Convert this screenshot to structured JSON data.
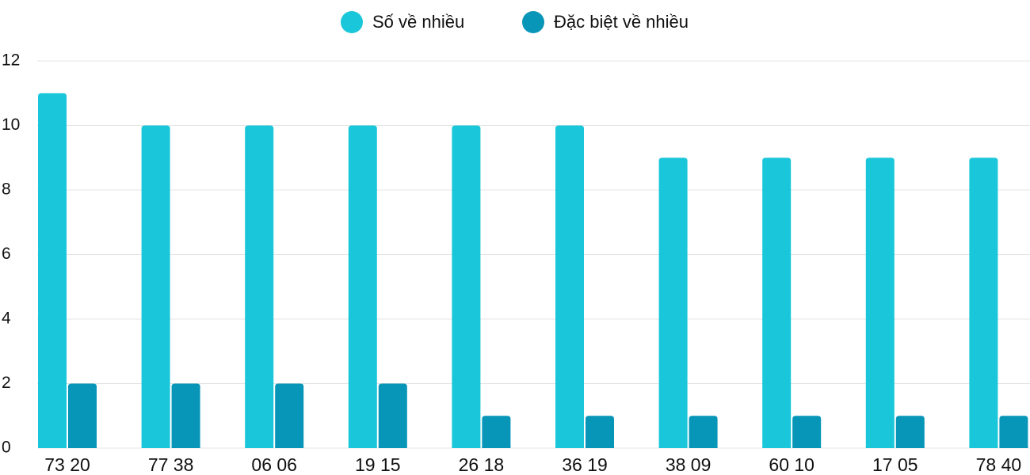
{
  "chart_data": {
    "type": "bar",
    "categories": [
      "73 20",
      "77 38",
      "06 06",
      "19 15",
      "26 18",
      "36 19",
      "38 09",
      "60 10",
      "17 05",
      "78 40"
    ],
    "series": [
      {
        "name": "Số về nhiều",
        "color": "#1ac6d9",
        "values": [
          11,
          10,
          10,
          10,
          10,
          10,
          9,
          9,
          9,
          9
        ]
      },
      {
        "name": "Đặc biệt về nhiều",
        "color": "#0795b8",
        "values": [
          2,
          2,
          2,
          2,
          1,
          1,
          1,
          1,
          1,
          1
        ]
      }
    ],
    "ylim": [
      0,
      12
    ],
    "yticks": [
      0,
      2,
      4,
      6,
      8,
      10,
      12
    ],
    "grid": true,
    "legend": "top"
  }
}
